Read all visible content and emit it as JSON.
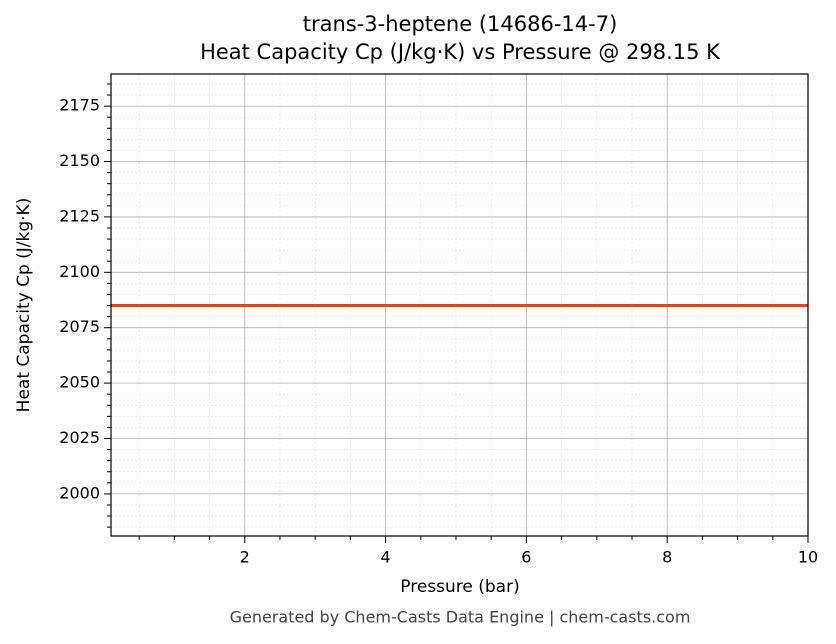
{
  "chart_data": {
    "type": "line",
    "title": "trans-3-heptene (14686-14-7)",
    "subtitle": "Heat Capacity Cp (J/kg·K) vs Pressure @ 298.15 K",
    "x_label": "Pressure (bar)",
    "y_label": "Heat Capacity Cp (J/kg·K)",
    "footer": "Generated by Chem-Casts Data Engine | chem-casts.com",
    "x": [
      0.1,
      10
    ],
    "series": [
      {
        "name": "Cp",
        "color": "#c4532a",
        "values": [
          2085,
          2085
        ]
      }
    ],
    "xlim": [
      0.1,
      10
    ],
    "ylim": [
      1981,
      2189.5
    ],
    "xticks": [
      2,
      4,
      6,
      8,
      10
    ],
    "yticks": [
      2000,
      2025,
      2050,
      2075,
      2100,
      2125,
      2150,
      2175
    ],
    "xminorticks": [
      0.5,
      1,
      1.5,
      2.5,
      3,
      3.5,
      4.5,
      5,
      5.5,
      6.5,
      7,
      7.5,
      8.5,
      9,
      9.5
    ],
    "yminorticks": [
      1985,
      1990,
      1995,
      2005,
      2010,
      2015,
      2020,
      2030,
      2035,
      2040,
      2045,
      2055,
      2060,
      2065,
      2070,
      2080,
      2085,
      2090,
      2095,
      2105,
      2110,
      2115,
      2120,
      2130,
      2135,
      2140,
      2145,
      2155,
      2160,
      2165,
      2170,
      2180,
      2185
    ],
    "grid": true
  }
}
